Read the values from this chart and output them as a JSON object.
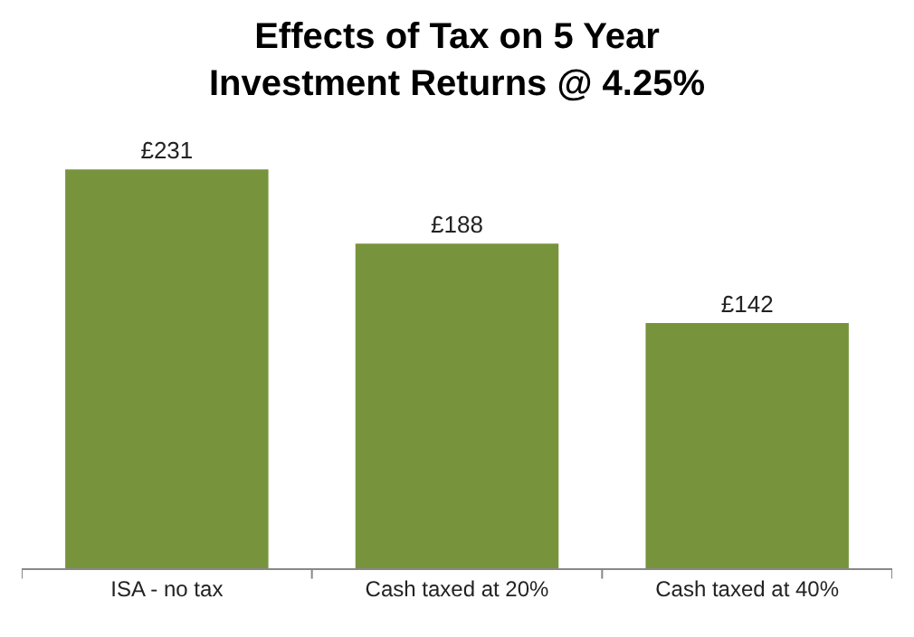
{
  "chart_data": {
    "type": "bar",
    "title": "Effects of Tax on 5 Year\nInvestment Returns @ 4.25%",
    "categories": [
      "ISA - no tax",
      "Cash taxed at 20%",
      "Cash taxed at 40%"
    ],
    "values": [
      231,
      188,
      142
    ],
    "value_labels": [
      "£231",
      "£188",
      "£142"
    ],
    "color": "#77933c",
    "tick_labels": "x",
    "grid": false
  }
}
